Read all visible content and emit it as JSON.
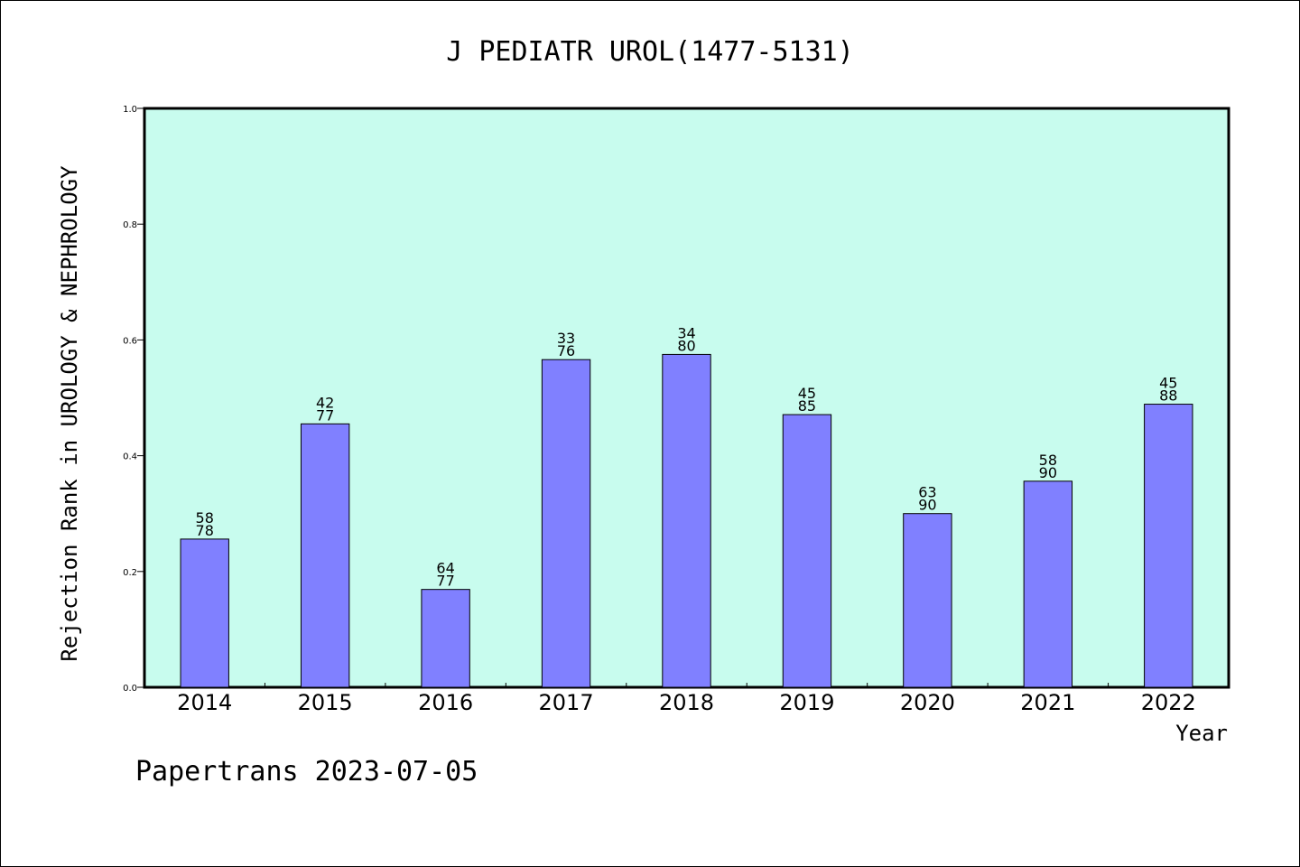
{
  "chart_data": {
    "type": "bar",
    "title": "J PEDIATR UROL(1477-5131)",
    "xlabel": "Year",
    "ylabel": "Rejection Rank in UROLOGY & NEPHROLOGY",
    "ylim": [
      0,
      1.0
    ],
    "yticks": [
      "0.0",
      "0.2",
      "0.4",
      "0.6",
      "0.8",
      "1.0"
    ],
    "categories": [
      "2014",
      "2015",
      "2016",
      "2017",
      "2018",
      "2019",
      "2020",
      "2021",
      "2022"
    ],
    "values": [
      0.256,
      0.455,
      0.169,
      0.566,
      0.575,
      0.471,
      0.3,
      0.356,
      0.489
    ],
    "labels_top": [
      "58",
      "42",
      "64",
      "33",
      "34",
      "45",
      "63",
      "58",
      "45"
    ],
    "labels_bottom": [
      "78",
      "77",
      "77",
      "76",
      "80",
      "85",
      "90",
      "90",
      "88"
    ],
    "grid": false,
    "colors": {
      "plot_bg": "#c8fcee",
      "bar": "#8080ff",
      "axis": "#000000"
    }
  },
  "footer": "Papertrans 2023-07-05"
}
